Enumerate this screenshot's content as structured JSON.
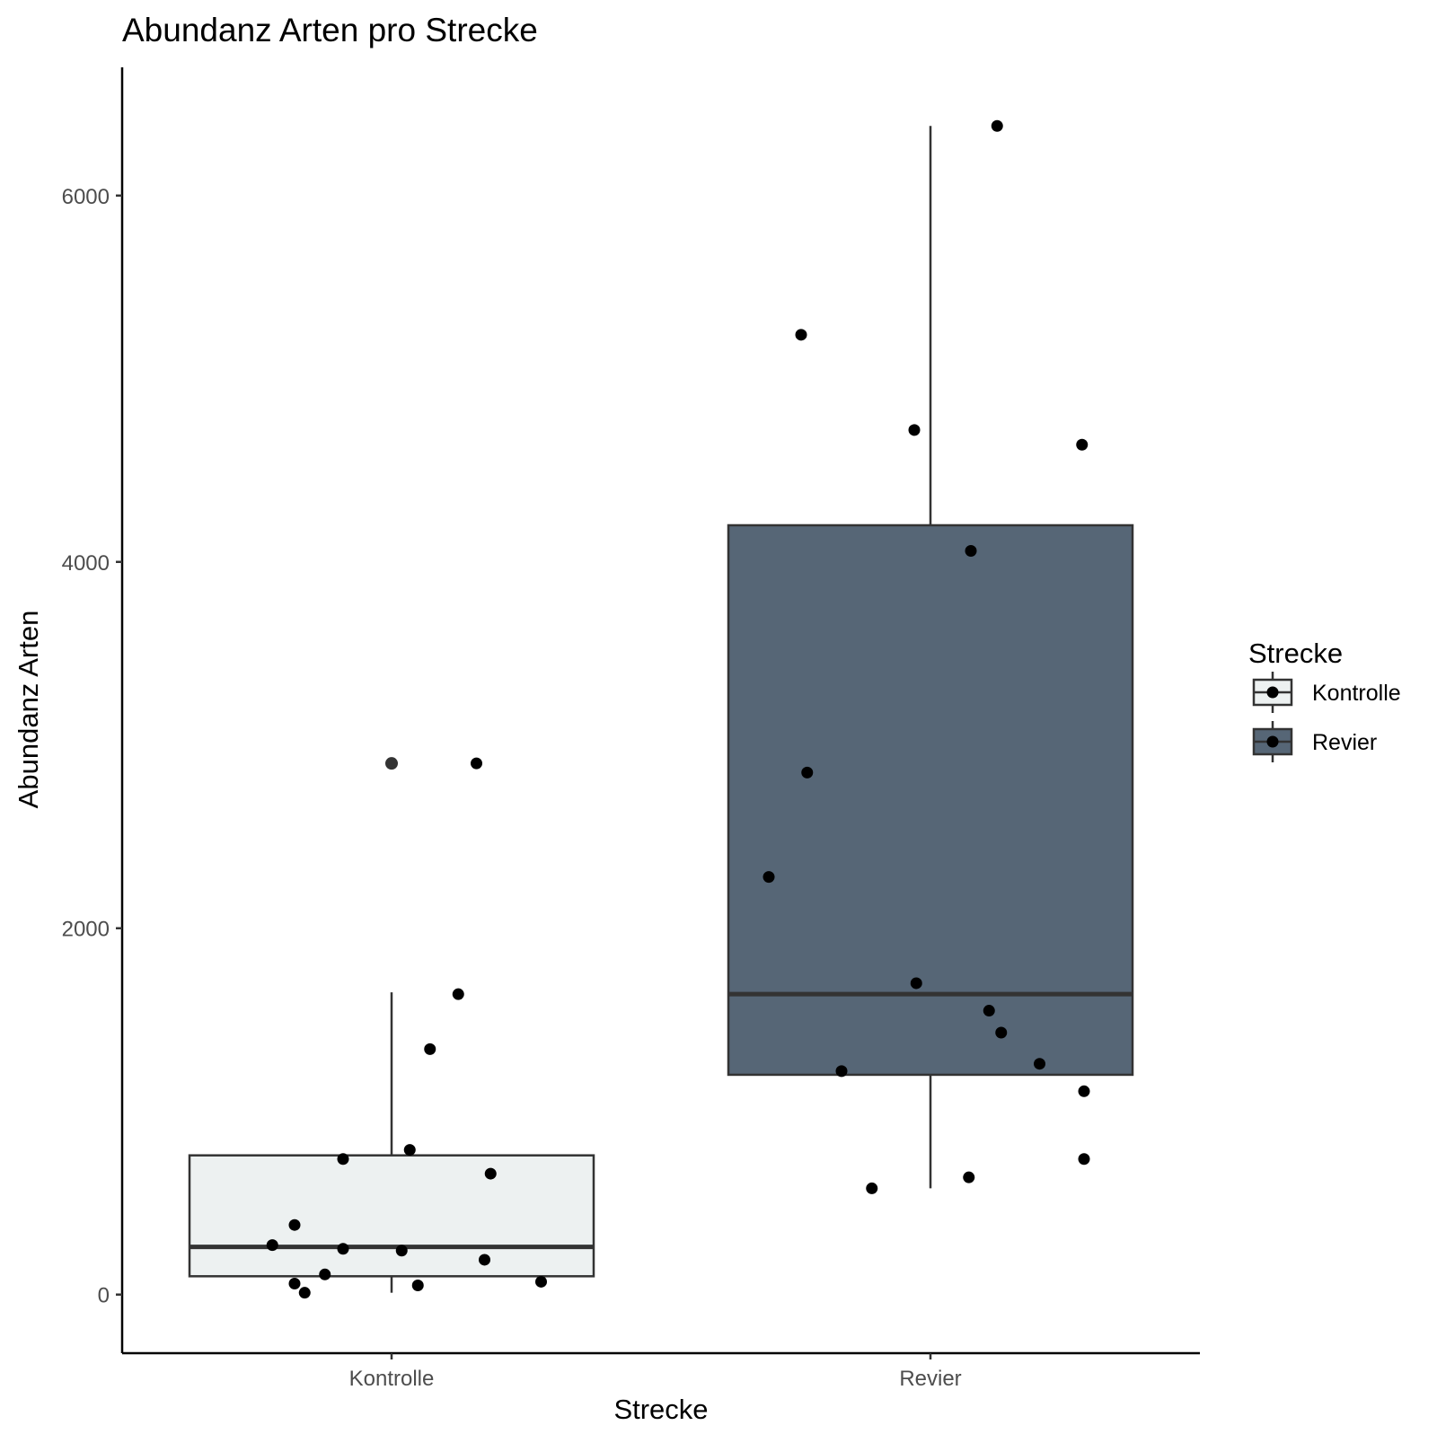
{
  "chart_data": {
    "type": "boxplot",
    "title": "Abundanz Arten pro Strecke",
    "xlabel": "Strecke",
    "ylabel": "Abundanz Arten",
    "ylim": [
      -320,
      6700
    ],
    "yticks": [
      0,
      2000,
      4000,
      6000
    ],
    "categories": [
      "Kontrolle",
      "Revier"
    ],
    "boxes": [
      {
        "name": "Kontrolle",
        "fill": "#edf1f1",
        "min": 10,
        "q1": 100,
        "median": 260,
        "q3": 760,
        "max": 1650,
        "outliers": [
          {
            "y": 2900
          }
        ]
      },
      {
        "name": "Revier",
        "fill": "#566676",
        "min": 580,
        "q1": 1200,
        "median": 1640,
        "q3": 4200,
        "max": 6380,
        "outliers": []
      }
    ],
    "points": [
      {
        "category": "Kontrolle",
        "jitter": -0.59,
        "y": 270
      },
      {
        "category": "Kontrolle",
        "jitter": -0.48,
        "y": 380
      },
      {
        "category": "Kontrolle",
        "jitter": -0.48,
        "y": 60
      },
      {
        "category": "Kontrolle",
        "jitter": -0.43,
        "y": 10
      },
      {
        "category": "Kontrolle",
        "jitter": -0.33,
        "y": 110
      },
      {
        "category": "Kontrolle",
        "jitter": -0.24,
        "y": 740
      },
      {
        "category": "Kontrolle",
        "jitter": -0.24,
        "y": 250
      },
      {
        "category": "Kontrolle",
        "jitter": 0.05,
        "y": 240
      },
      {
        "category": "Kontrolle",
        "jitter": 0.09,
        "y": 790
      },
      {
        "category": "Kontrolle",
        "jitter": 0.13,
        "y": 50
      },
      {
        "category": "Kontrolle",
        "jitter": 0.19,
        "y": 1340
      },
      {
        "category": "Kontrolle",
        "jitter": 0.33,
        "y": 1640
      },
      {
        "category": "Kontrolle",
        "jitter": 0.42,
        "y": 2900
      },
      {
        "category": "Kontrolle",
        "jitter": 0.46,
        "y": 190
      },
      {
        "category": "Kontrolle",
        "jitter": 0.49,
        "y": 660
      },
      {
        "category": "Kontrolle",
        "jitter": 0.74,
        "y": 70
      },
      {
        "category": "Revier",
        "jitter": -0.8,
        "y": 2280
      },
      {
        "category": "Revier",
        "jitter": -0.64,
        "y": 5240
      },
      {
        "category": "Revier",
        "jitter": -0.61,
        "y": 2850
      },
      {
        "category": "Revier",
        "jitter": -0.44,
        "y": 1220
      },
      {
        "category": "Revier",
        "jitter": -0.29,
        "y": 580
      },
      {
        "category": "Revier",
        "jitter": -0.08,
        "y": 4720
      },
      {
        "category": "Revier",
        "jitter": -0.07,
        "y": 1700
      },
      {
        "category": "Revier",
        "jitter": 0.19,
        "y": 640
      },
      {
        "category": "Revier",
        "jitter": 0.2,
        "y": 4060
      },
      {
        "category": "Revier",
        "jitter": 0.29,
        "y": 1550
      },
      {
        "category": "Revier",
        "jitter": 0.33,
        "y": 6380
      },
      {
        "category": "Revier",
        "jitter": 0.35,
        "y": 1430
      },
      {
        "category": "Revier",
        "jitter": 0.54,
        "y": 1260
      },
      {
        "category": "Revier",
        "jitter": 0.75,
        "y": 4640
      },
      {
        "category": "Revier",
        "jitter": 0.76,
        "y": 1110
      },
      {
        "category": "Revier",
        "jitter": 0.76,
        "y": 740
      }
    ],
    "legend": {
      "title": "Strecke",
      "position": "right",
      "entries": [
        {
          "label": "Kontrolle",
          "fill": "#edf1f1"
        },
        {
          "label": "Revier",
          "fill": "#566676"
        }
      ]
    },
    "grid": false
  }
}
